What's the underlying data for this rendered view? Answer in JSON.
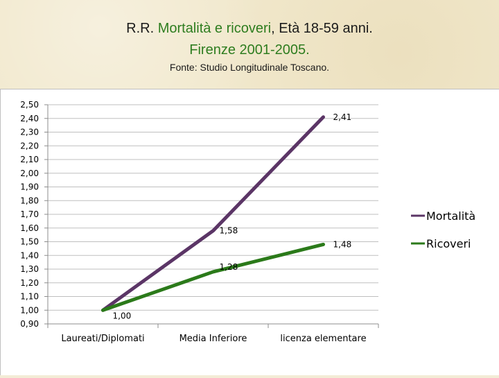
{
  "header": {
    "title_prefix": "R.R. ",
    "title_highlight": "Mortalità e ricoveri",
    "title_suffix": ", Età 18-59 anni.",
    "title_line2": "Firenze 2001-2005.",
    "source": "Fonte: Studio Longitudinale Toscano."
  },
  "colors": {
    "mortalita": "#5b3566",
    "ricoveri": "#2b7a1a",
    "grid": "#bfbfbf",
    "highlight_text": "#2e7d1f"
  },
  "chart_data": {
    "type": "line",
    "categories": [
      "Laureati/Diplomati",
      "Media Inferiore",
      "licenza elementare"
    ],
    "series": [
      {
        "name": "Mortalità",
        "values": [
          1.0,
          1.58,
          2.41
        ],
        "labels": [
          "",
          "1,58",
          "2,41"
        ]
      },
      {
        "name": "Ricoveri",
        "values": [
          1.0,
          1.28,
          1.48
        ],
        "labels": [
          "1,00",
          "1,28",
          "1,48"
        ]
      }
    ],
    "ylim": [
      0.9,
      2.5
    ],
    "ytick_step": 0.1,
    "ytick_labels": [
      "0,90",
      "1,00",
      "1,10",
      "1,20",
      "1,30",
      "1,40",
      "1,50",
      "1,60",
      "1,70",
      "1,80",
      "1,90",
      "2,00",
      "2,10",
      "2,20",
      "2,30",
      "2,40",
      "2,50"
    ],
    "grid": true,
    "legend_position": "right",
    "title": "",
    "xlabel": "",
    "ylabel": ""
  }
}
